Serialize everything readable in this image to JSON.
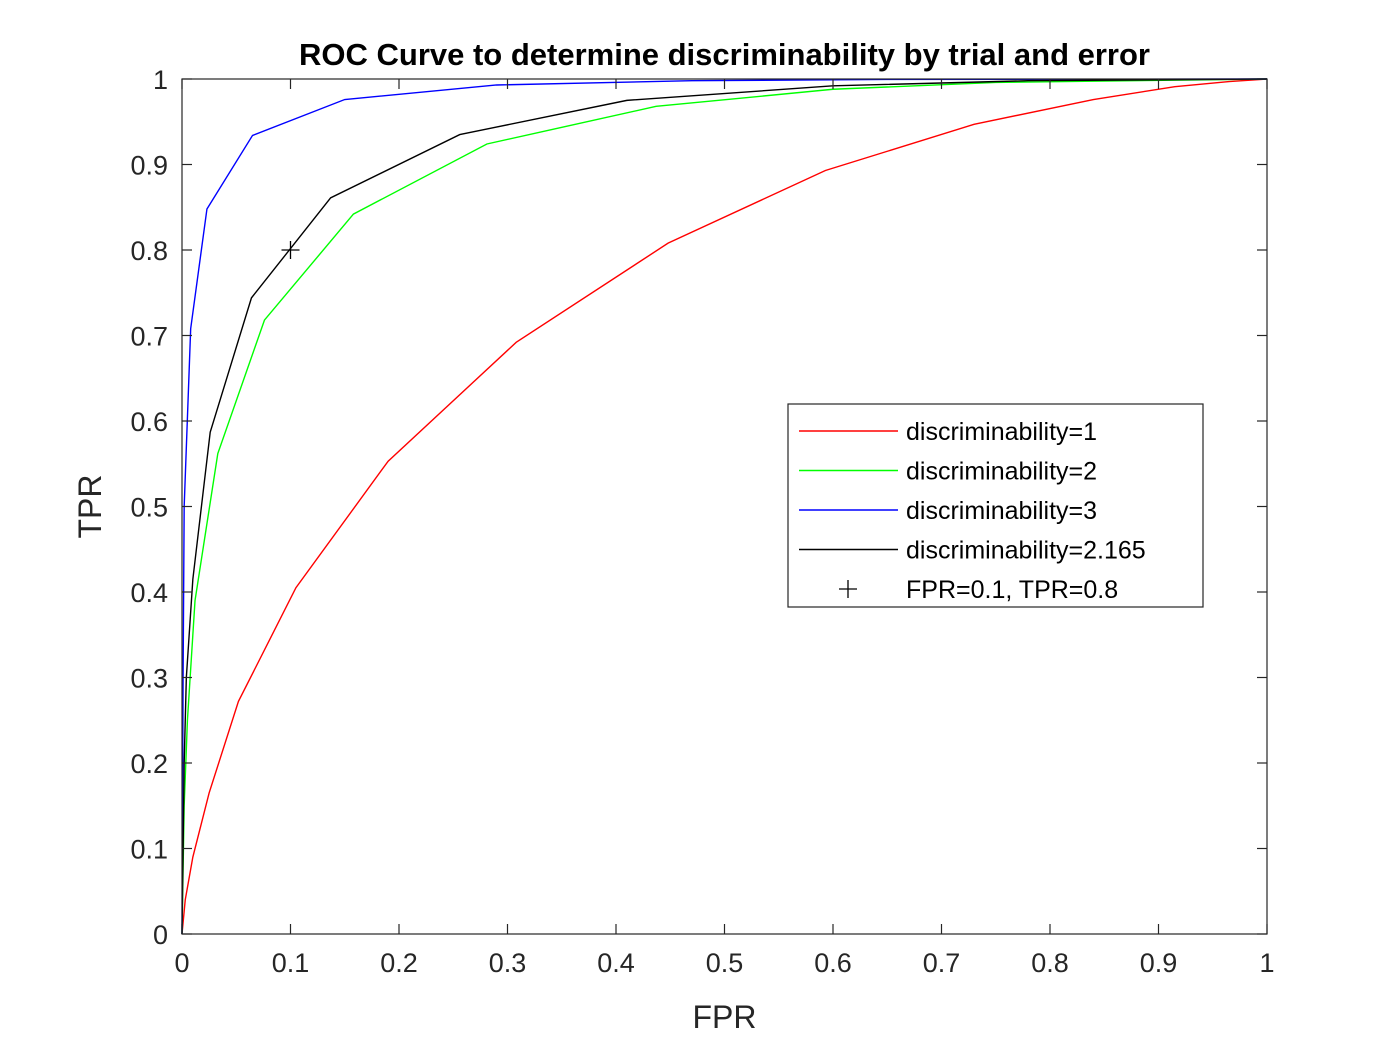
{
  "chart_data": {
    "type": "line",
    "title": "ROC Curve to determine discriminability by trial and error",
    "xlabel": "FPR",
    "ylabel": "TPR",
    "xlim": [
      0,
      1
    ],
    "ylim": [
      0,
      1
    ],
    "xticks": [
      0,
      0.1,
      0.2,
      0.3,
      0.4,
      0.5,
      0.6,
      0.7,
      0.8,
      0.9,
      1
    ],
    "xtick_labels": [
      "0",
      "0.1",
      "0.2",
      "0.3",
      "0.4",
      "0.5",
      "0.6",
      "0.7",
      "0.8",
      "0.9",
      "1"
    ],
    "yticks": [
      0,
      0.1,
      0.2,
      0.3,
      0.4,
      0.5,
      0.6,
      0.7,
      0.8,
      0.9,
      1
    ],
    "ytick_labels": [
      "0",
      "0.1",
      "0.2",
      "0.3",
      "0.4",
      "0.5",
      "0.6",
      "0.7",
      "0.8",
      "0.9",
      "1"
    ],
    "grid": false,
    "legend_position": "center-right",
    "series": [
      {
        "name": "discriminability=1",
        "color": "#ff0000",
        "points": [
          [
            0,
            0
          ],
          [
            0.003,
            0.04
          ],
          [
            0.01,
            0.09
          ],
          [
            0.025,
            0.165
          ],
          [
            0.052,
            0.272
          ],
          [
            0.105,
            0.405
          ],
          [
            0.19,
            0.553
          ],
          [
            0.308,
            0.692
          ],
          [
            0.448,
            0.808
          ],
          [
            0.593,
            0.893
          ],
          [
            0.73,
            0.947
          ],
          [
            0.84,
            0.976
          ],
          [
            0.915,
            0.991
          ],
          [
            0.965,
            0.997
          ],
          [
            1,
            1
          ]
        ]
      },
      {
        "name": "discriminability=2",
        "color": "#00ff00",
        "points": [
          [
            0,
            0
          ],
          [
            0.002,
            0.15
          ],
          [
            0.005,
            0.25
          ],
          [
            0.012,
            0.39
          ],
          [
            0.033,
            0.562
          ],
          [
            0.076,
            0.718
          ],
          [
            0.158,
            0.842
          ],
          [
            0.281,
            0.924
          ],
          [
            0.437,
            0.968
          ],
          [
            0.6,
            0.988
          ],
          [
            0.75,
            0.996
          ],
          [
            1,
            1
          ]
        ]
      },
      {
        "name": "discriminability=3",
        "color": "#0000ff",
        "points": [
          [
            0,
            0
          ],
          [
            0.001,
            0.3
          ],
          [
            0.002,
            0.5
          ],
          [
            0.008,
            0.708
          ],
          [
            0.023,
            0.848
          ],
          [
            0.065,
            0.934
          ],
          [
            0.15,
            0.976
          ],
          [
            0.29,
            0.993
          ],
          [
            0.47,
            0.998
          ],
          [
            0.65,
            0.9995
          ],
          [
            1,
            1
          ]
        ]
      },
      {
        "name": "discriminability=2.165",
        "color": "#000000",
        "points": [
          [
            0,
            0
          ],
          [
            0.002,
            0.2
          ],
          [
            0.004,
            0.3
          ],
          [
            0.01,
            0.415
          ],
          [
            0.026,
            0.587
          ],
          [
            0.064,
            0.744
          ],
          [
            0.137,
            0.861
          ],
          [
            0.256,
            0.935
          ],
          [
            0.41,
            0.975
          ],
          [
            0.6,
            0.992
          ],
          [
            0.78,
            0.998
          ],
          [
            1,
            1
          ]
        ]
      }
    ],
    "marker": {
      "name": "FPR=0.1, TPR=0.8",
      "symbol": "+",
      "x": 0.1,
      "y": 0.8,
      "color": "#000000"
    }
  }
}
